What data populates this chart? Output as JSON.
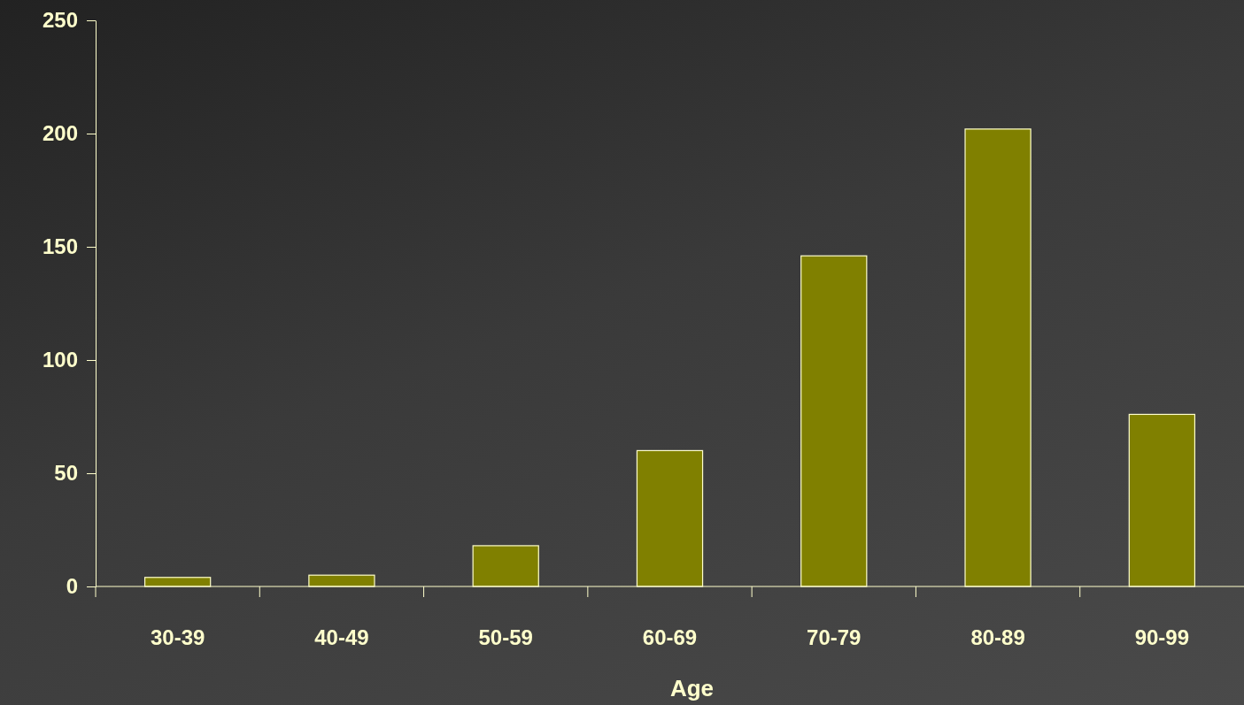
{
  "chart_data": {
    "type": "bar",
    "xlabel": "Age",
    "categories": [
      "30-39",
      "40-49",
      "50-59",
      "60-69",
      "70-79",
      "80-89",
      "90-99"
    ],
    "values": [
      4,
      5,
      18,
      60,
      146,
      202,
      76
    ],
    "color": "#808000",
    "ylim": [
      0,
      250
    ],
    "yticks": [
      0,
      50,
      100,
      150,
      200,
      250
    ],
    "grid": false,
    "legend": false
  }
}
